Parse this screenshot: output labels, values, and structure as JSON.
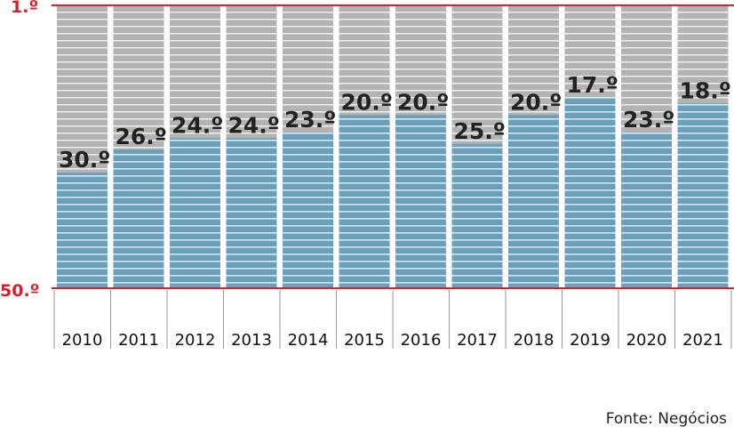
{
  "chart_data": {
    "type": "bar",
    "categories": [
      "2010",
      "2011",
      "2012",
      "2013",
      "2014",
      "2015",
      "2016",
      "2017",
      "2018",
      "2019",
      "2020",
      "2021"
    ],
    "values": [
      30,
      26,
      24,
      24,
      23,
      20,
      20,
      25,
      20,
      17,
      23,
      18
    ],
    "value_labels": [
      "30.º",
      "26.º",
      "24.º",
      "24.º",
      "23.º",
      "20.º",
      "20.º",
      "25.º",
      "20.º",
      "17.º",
      "23.º",
      "18.º"
    ],
    "y_axis": {
      "top_label": "1.º",
      "bottom_label": "50.º",
      "range": [
        1,
        50
      ],
      "inverted": true
    },
    "title": "",
    "xlabel": "",
    "ylabel": "",
    "grid": false,
    "colors": {
      "bar": "#6a9fbd",
      "background_bar": "#b3b3b3",
      "stripe": "#ffffff",
      "axis_line": "#d7202d"
    }
  },
  "source": "Fonte: Negócios"
}
